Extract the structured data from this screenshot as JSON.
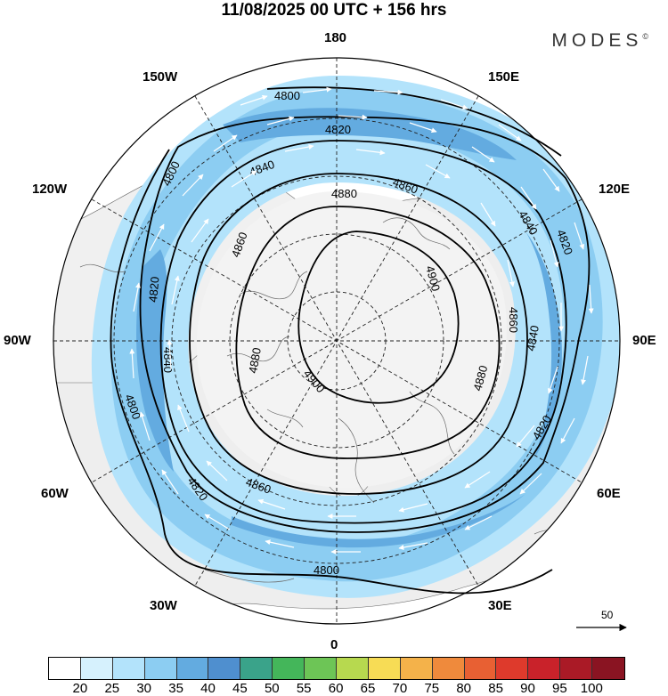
{
  "title": "11/08/2025  00 UTC  + 156 hrs",
  "brand": "MODES",
  "brand_mark": "©",
  "lon_labels": {
    "top": "180",
    "top_left": "150W",
    "top_right": "150E",
    "upper_left": "120W",
    "upper_right": "120E",
    "left": "90W",
    "right": "90E",
    "lower_left": "60W",
    "lower_right": "60E",
    "bottom_left": "30W",
    "bottom_right": "30E",
    "bottom": "0"
  },
  "contour_labels": [
    "4800",
    "4820",
    "4840",
    "4860",
    "4880",
    "4900"
  ],
  "vector_scale_label": "50",
  "colorbar": {
    "labels": [
      "20",
      "25",
      "30",
      "35",
      "40",
      "45",
      "50",
      "55",
      "60",
      "65",
      "70",
      "75",
      "80",
      "85",
      "90",
      "95",
      "100"
    ],
    "colors": [
      "#ffffff",
      "#d6f1fd",
      "#b3e3fb",
      "#8ccdf2",
      "#63abe0",
      "#4f8fcf",
      "#3aa38a",
      "#44b65a",
      "#6dc556",
      "#b7d94f",
      "#f7dc55",
      "#f4b24a",
      "#ef8a3c",
      "#e86033",
      "#de3a2c",
      "#c9222a",
      "#aa1a26",
      "#8a1422"
    ]
  }
}
